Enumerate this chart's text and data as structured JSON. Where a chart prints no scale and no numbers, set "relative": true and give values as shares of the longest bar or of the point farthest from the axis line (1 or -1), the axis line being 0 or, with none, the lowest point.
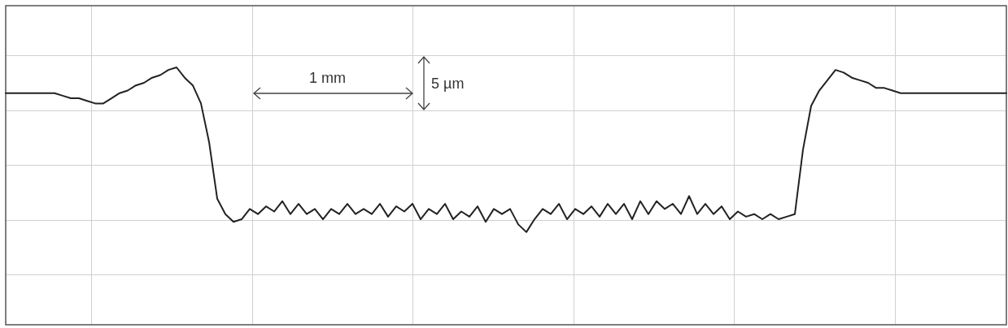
{
  "chart_data": {
    "type": "line",
    "relative": true,
    "grid": true,
    "marker": "none",
    "line_style": "solid",
    "legend": false,
    "tick_labels": false,
    "categories": [
      null,
      null,
      null,
      null,
      null,
      null,
      null,
      null,
      null,
      null,
      null,
      null,
      null,
      null,
      null,
      null,
      null,
      null,
      null,
      null,
      null,
      null,
      null,
      null,
      null,
      null,
      null,
      null,
      null,
      null,
      null,
      null,
      null,
      null,
      null,
      null,
      null,
      null,
      null,
      null,
      null,
      null,
      null,
      null,
      null,
      null,
      null,
      null,
      null,
      null,
      null,
      null,
      null,
      null,
      null,
      null,
      null,
      null,
      null,
      null,
      null,
      null,
      null,
      null,
      null,
      null,
      null,
      null,
      null,
      null,
      null,
      null,
      null,
      null,
      null,
      null,
      null,
      null,
      null,
      null,
      null,
      null,
      null,
      null,
      null,
      null,
      null,
      null,
      null,
      null,
      null,
      null,
      null,
      null,
      null,
      null,
      null,
      null,
      null,
      null,
      null,
      null,
      null,
      null,
      null,
      null,
      null,
      null,
      null,
      null,
      null,
      null,
      null,
      null,
      null,
      null,
      null,
      null,
      null,
      null,
      null,
      null,
      null,
      null
    ],
    "series": [
      {
        "color": "#222222",
        "values": [
          0.9,
          0.9,
          0.9,
          0.9,
          0.9,
          0.9,
          0.9,
          0.89,
          0.88,
          0.88,
          0.87,
          0.86,
          0.86,
          0.88,
          0.9,
          0.91,
          0.93,
          0.94,
          0.96,
          0.97,
          0.99,
          1,
          0.96,
          0.93,
          0.86,
          0.71,
          0.49,
          0.43,
          0.4,
          0.41,
          0.45,
          0.43,
          0.46,
          0.44,
          0.48,
          0.43,
          0.47,
          0.43,
          0.45,
          0.41,
          0.45,
          0.43,
          0.47,
          0.43,
          0.45,
          0.43,
          0.47,
          0.42,
          0.46,
          0.44,
          0.47,
          0.41,
          0.45,
          0.43,
          0.47,
          0.41,
          0.44,
          0.42,
          0.46,
          0.4,
          0.45,
          0.43,
          0.45,
          0.39,
          0.36,
          0.41,
          0.45,
          0.43,
          0.47,
          0.41,
          0.45,
          0.43,
          0.46,
          0.42,
          0.47,
          0.43,
          0.47,
          0.41,
          0.48,
          0.43,
          0.48,
          0.45,
          0.47,
          0.43,
          0.5,
          0.43,
          0.47,
          0.43,
          0.46,
          0.41,
          0.44,
          0.42,
          0.43,
          0.41,
          0.43,
          0.41,
          0.42,
          0.43,
          0.68,
          0.85,
          0.91,
          0.95,
          0.99,
          0.98,
          0.96,
          0.95,
          0.94,
          0.92,
          0.92,
          0.91,
          0.9,
          0.9,
          0.9,
          0.9,
          0.9,
          0.9,
          0.9,
          0.9,
          0.9,
          0.9,
          0.9,
          0.9,
          0.9,
          0.9
        ]
      }
    ],
    "annotations": [
      "1 mm",
      "5 µm"
    ]
  }
}
